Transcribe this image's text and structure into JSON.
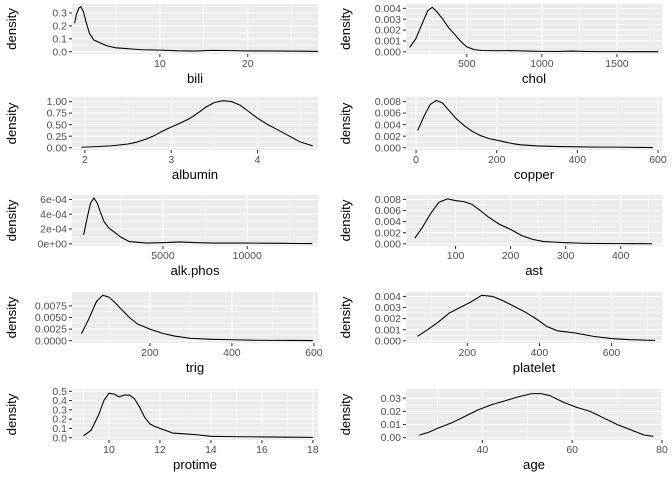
{
  "chart_data": [
    {
      "type": "line",
      "xlabel": "bili",
      "ylabel": "density",
      "xlim": [
        0,
        28
      ],
      "ylim": [
        -0.018,
        0.37
      ],
      "xticks": [
        {
          "value": 10,
          "label": "10"
        },
        {
          "value": 20,
          "label": "20"
        }
      ],
      "yticks": [
        {
          "value": 0.0,
          "label": "0.0"
        },
        {
          "value": 0.1,
          "label": "0.1"
        },
        {
          "value": 0.2,
          "label": "0.2"
        },
        {
          "value": 0.3,
          "label": "0.3"
        }
      ],
      "x": [
        0.3,
        0.5,
        0.8,
        1.0,
        1.3,
        1.6,
        2.0,
        2.5,
        3.0,
        3.5,
        4.0,
        5.0,
        6.0,
        7.0,
        8.0,
        10.0,
        12.0,
        14.0,
        16.0,
        18.0,
        20.0,
        22.0,
        24.0,
        26.0,
        27.0,
        28.0
      ],
      "y": [
        0.22,
        0.29,
        0.34,
        0.35,
        0.31,
        0.23,
        0.14,
        0.09,
        0.075,
        0.06,
        0.045,
        0.03,
        0.025,
        0.02,
        0.015,
        0.012,
        0.007,
        0.005,
        0.01,
        0.008,
        0.006,
        0.006,
        0.005,
        0.004,
        0.003,
        0.002
      ]
    },
    {
      "type": "line",
      "xlabel": "chol",
      "ylabel": "density",
      "xlim": [
        95,
        1800
      ],
      "ylim": [
        -0.0002,
        0.0044
      ],
      "xticks": [
        {
          "value": 500,
          "label": "500"
        },
        {
          "value": 1000,
          "label": "1000"
        },
        {
          "value": 1500,
          "label": "1500"
        }
      ],
      "yticks": [
        {
          "value": 0.0,
          "label": "0.000"
        },
        {
          "value": 0.001,
          "label": "0.001"
        },
        {
          "value": 0.002,
          "label": "0.002"
        },
        {
          "value": 0.003,
          "label": "0.003"
        },
        {
          "value": 0.004,
          "label": "0.004"
        }
      ],
      "x": [
        120,
        160,
        200,
        240,
        270,
        300,
        340,
        380,
        420,
        450,
        480,
        500,
        550,
        600,
        700,
        800,
        900,
        1000,
        1100,
        1200,
        1300,
        1400,
        1500,
        1600,
        1700,
        1775
      ],
      "y": [
        0.0004,
        0.0012,
        0.0025,
        0.0038,
        0.0041,
        0.0037,
        0.003,
        0.0022,
        0.0016,
        0.0011,
        0.0007,
        0.00045,
        0.0002,
        0.00012,
        0.0001,
        0.00011,
        7e-05,
        4e-05,
        3e-05,
        7e-05,
        3e-05,
        2e-05,
        2e-05,
        1e-05,
        1e-05,
        1e-05
      ]
    },
    {
      "type": "line",
      "xlabel": "albumin",
      "ylabel": "density",
      "xlim": [
        1.85,
        4.7
      ],
      "ylim": [
        -0.05,
        1.1
      ],
      "xticks": [
        {
          "value": 2,
          "label": "2"
        },
        {
          "value": 3,
          "label": "3"
        },
        {
          "value": 4,
          "label": "4"
        }
      ],
      "yticks": [
        {
          "value": 0.0,
          "label": "0.00"
        },
        {
          "value": 0.25,
          "label": "0.25"
        },
        {
          "value": 0.5,
          "label": "0.50"
        },
        {
          "value": 0.75,
          "label": "0.75"
        },
        {
          "value": 1.0,
          "label": "1.00"
        }
      ],
      "x": [
        1.96,
        2.1,
        2.3,
        2.5,
        2.6,
        2.7,
        2.8,
        2.9,
        3.0,
        3.1,
        3.2,
        3.3,
        3.4,
        3.5,
        3.6,
        3.7,
        3.8,
        3.9,
        4.0,
        4.1,
        4.2,
        4.3,
        4.4,
        4.5,
        4.64
      ],
      "y": [
        0.01,
        0.02,
        0.04,
        0.08,
        0.12,
        0.18,
        0.26,
        0.36,
        0.45,
        0.53,
        0.62,
        0.74,
        0.88,
        0.98,
        1.02,
        1.0,
        0.92,
        0.78,
        0.64,
        0.52,
        0.42,
        0.32,
        0.22,
        0.12,
        0.04
      ]
    },
    {
      "type": "line",
      "xlabel": "copper",
      "ylabel": "density",
      "xlim": [
        -25,
        610
      ],
      "ylim": [
        -0.0004,
        0.0088
      ],
      "xticks": [
        {
          "value": 0,
          "label": "0"
        },
        {
          "value": 200,
          "label": "200"
        },
        {
          "value": 400,
          "label": "400"
        },
        {
          "value": 600,
          "label": "600"
        }
      ],
      "yticks": [
        {
          "value": 0.0,
          "label": "0.000"
        },
        {
          "value": 0.002,
          "label": "0.002"
        },
        {
          "value": 0.004,
          "label": "0.004"
        },
        {
          "value": 0.006,
          "label": "0.006"
        },
        {
          "value": 0.008,
          "label": "0.008"
        }
      ],
      "x": [
        4,
        20,
        35,
        50,
        65,
        80,
        100,
        120,
        140,
        160,
        180,
        200,
        220,
        240,
        260,
        300,
        350,
        400,
        450,
        500,
        550,
        588
      ],
      "y": [
        0.003,
        0.0055,
        0.0075,
        0.0082,
        0.0078,
        0.0066,
        0.005,
        0.0038,
        0.0028,
        0.0021,
        0.0016,
        0.0013,
        0.001,
        0.0007,
        0.0005,
        0.0003,
        0.0002,
        0.00015,
        0.0001,
        0.0001,
        5e-05,
        3e-05
      ]
    },
    {
      "type": "line",
      "xlabel": "alk.phos",
      "ylabel": "density",
      "xlim": [
        -400,
        14200
      ],
      "ylim": [
        -3e-05,
        0.00066
      ],
      "xticks": [
        {
          "value": 5000,
          "label": "5000"
        },
        {
          "value": 10000,
          "label": "10000"
        }
      ],
      "yticks": [
        {
          "value": 0.0,
          "label": "0e+00"
        },
        {
          "value": 0.0002,
          "label": "2e-04"
        },
        {
          "value": 0.0004,
          "label": "4e-04"
        },
        {
          "value": 0.0006,
          "label": "6e-04"
        }
      ],
      "x": [
        289,
        500,
        700,
        900,
        1100,
        1300,
        1500,
        1800,
        2100,
        2500,
        3000,
        3500,
        4000,
        5000,
        6000,
        7000,
        8000,
        9000,
        10000,
        11000,
        12000,
        13000,
        13862
      ],
      "y": [
        0.00012,
        0.00035,
        0.00055,
        0.00062,
        0.00055,
        0.00042,
        0.0003,
        0.00021,
        0.00016,
        9e-05,
        3e-05,
        2e-05,
        1e-05,
        1.5e-05,
        2.5e-05,
        1.5e-05,
        1e-05,
        1e-05,
        1e-05,
        8e-06,
        6e-06,
        4e-06,
        3e-06
      ]
    },
    {
      "type": "line",
      "xlabel": "ast",
      "ylabel": "density",
      "xlim": [
        10,
        475
      ],
      "ylim": [
        -0.0004,
        0.0088
      ],
      "xticks": [
        {
          "value": 100,
          "label": "100"
        },
        {
          "value": 200,
          "label": "200"
        },
        {
          "value": 300,
          "label": "300"
        },
        {
          "value": 400,
          "label": "400"
        }
      ],
      "yticks": [
        {
          "value": 0.0,
          "label": "0.000"
        },
        {
          "value": 0.002,
          "label": "0.002"
        },
        {
          "value": 0.004,
          "label": "0.004"
        },
        {
          "value": 0.006,
          "label": "0.006"
        },
        {
          "value": 0.008,
          "label": "0.008"
        }
      ],
      "x": [
        26,
        40,
        55,
        70,
        85,
        100,
        115,
        130,
        145,
        160,
        180,
        200,
        220,
        240,
        260,
        280,
        300,
        330,
        360,
        400,
        440,
        457
      ],
      "y": [
        0.001,
        0.003,
        0.0055,
        0.0075,
        0.0081,
        0.0078,
        0.0076,
        0.0071,
        0.006,
        0.0048,
        0.0035,
        0.0026,
        0.0015,
        0.0008,
        0.0004,
        0.0003,
        0.0002,
        0.0001,
        5e-05,
        3e-05,
        2e-05,
        1e-05
      ]
    },
    {
      "type": "line",
      "xlabel": "trig",
      "ylabel": "density",
      "xlim": [
        10,
        610
      ],
      "ylim": [
        -0.0005,
        0.0105
      ],
      "xticks": [
        {
          "value": 200,
          "label": "200"
        },
        {
          "value": 400,
          "label": "400"
        },
        {
          "value": 600,
          "label": "600"
        }
      ],
      "yticks": [
        {
          "value": 0.0,
          "label": "0.0000"
        },
        {
          "value": 0.0025,
          "label": "0.0025"
        },
        {
          "value": 0.005,
          "label": "0.0050"
        },
        {
          "value": 0.0075,
          "label": "0.0075"
        }
      ],
      "x": [
        33,
        50,
        70,
        85,
        100,
        115,
        130,
        150,
        170,
        200,
        230,
        260,
        300,
        350,
        400,
        450,
        500,
        550,
        598
      ],
      "y": [
        0.0015,
        0.0045,
        0.0085,
        0.0098,
        0.0094,
        0.0082,
        0.0068,
        0.005,
        0.0036,
        0.0025,
        0.0016,
        0.001,
        0.0005,
        0.0003,
        0.0002,
        0.0001,
        7e-05,
        5e-05,
        3e-05
      ]
    },
    {
      "type": "line",
      "xlabel": "platelet",
      "ylabel": "density",
      "xlim": [
        30,
        740
      ],
      "ylim": [
        -0.0002,
        0.0044
      ],
      "xticks": [
        {
          "value": 200,
          "label": "200"
        },
        {
          "value": 400,
          "label": "400"
        },
        {
          "value": 600,
          "label": "600"
        }
      ],
      "yticks": [
        {
          "value": 0.0,
          "label": "0.000"
        },
        {
          "value": 0.001,
          "label": "0.001"
        },
        {
          "value": 0.002,
          "label": "0.002"
        },
        {
          "value": 0.003,
          "label": "0.003"
        },
        {
          "value": 0.004,
          "label": "0.004"
        }
      ],
      "x": [
        62,
        90,
        120,
        150,
        180,
        210,
        240,
        270,
        300,
        330,
        360,
        390,
        420,
        450,
        500,
        550,
        600,
        650,
        700,
        721
      ],
      "y": [
        0.0004,
        0.001,
        0.0017,
        0.0025,
        0.003,
        0.0035,
        0.0041,
        0.004,
        0.0036,
        0.0031,
        0.0026,
        0.002,
        0.0013,
        0.0009,
        0.0007,
        0.0004,
        0.0002,
        0.0001,
        5e-05,
        3e-05
      ]
    },
    {
      "type": "line",
      "xlabel": "protime",
      "ylabel": "density",
      "xlim": [
        8.55,
        18.2
      ],
      "ylim": [
        -0.025,
        0.525
      ],
      "xticks": [
        {
          "value": 10,
          "label": "10"
        },
        {
          "value": 12,
          "label": "12"
        },
        {
          "value": 14,
          "label": "14"
        },
        {
          "value": 16,
          "label": "16"
        },
        {
          "value": 18,
          "label": "18"
        }
      ],
      "yticks": [
        {
          "value": 0.0,
          "label": "0.0"
        },
        {
          "value": 0.1,
          "label": "0.1"
        },
        {
          "value": 0.2,
          "label": "0.2"
        },
        {
          "value": 0.3,
          "label": "0.3"
        },
        {
          "value": 0.4,
          "label": "0.4"
        },
        {
          "value": 0.5,
          "label": "0.5"
        }
      ],
      "x": [
        9.0,
        9.3,
        9.6,
        9.8,
        10.0,
        10.2,
        10.4,
        10.6,
        10.8,
        11.0,
        11.2,
        11.4,
        11.6,
        11.8,
        12.0,
        12.5,
        13.0,
        13.5,
        14.0,
        15.0,
        16.0,
        17.0,
        18.0
      ],
      "y": [
        0.02,
        0.08,
        0.25,
        0.4,
        0.48,
        0.47,
        0.44,
        0.46,
        0.46,
        0.42,
        0.33,
        0.22,
        0.15,
        0.12,
        0.1,
        0.05,
        0.04,
        0.03,
        0.015,
        0.01,
        0.008,
        0.005,
        0.003
      ]
    },
    {
      "type": "line",
      "xlabel": "age",
      "ylabel": "density",
      "xlim": [
        23,
        80
      ],
      "ylim": [
        -0.0018,
        0.037
      ],
      "xticks": [
        {
          "value": 40,
          "label": "40"
        },
        {
          "value": 60,
          "label": "60"
        },
        {
          "value": 80,
          "label": "80"
        }
      ],
      "yticks": [
        {
          "value": 0.0,
          "label": "0.00"
        },
        {
          "value": 0.01,
          "label": "0.01"
        },
        {
          "value": 0.02,
          "label": "0.02"
        },
        {
          "value": 0.03,
          "label": "0.03"
        }
      ],
      "x": [
        26,
        28,
        30,
        33,
        36,
        39,
        42,
        45,
        48,
        51,
        53,
        55,
        58,
        61,
        64,
        67,
        70,
        73,
        76,
        78
      ],
      "y": [
        0.002,
        0.004,
        0.007,
        0.011,
        0.016,
        0.021,
        0.025,
        0.028,
        0.031,
        0.0335,
        0.0335,
        0.032,
        0.027,
        0.023,
        0.02,
        0.015,
        0.01,
        0.006,
        0.002,
        0.001
      ]
    }
  ]
}
